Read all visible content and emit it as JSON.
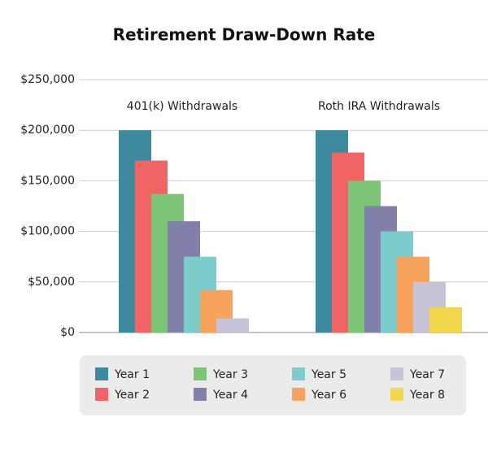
{
  "chart_data": {
    "type": "bar",
    "title": "Retirement Draw-Down Rate",
    "categories": [
      "401(k) Withdrawals",
      "Roth IRA Withdrawals"
    ],
    "series": [
      {
        "name": "Year 1",
        "color": "#3d8a9e",
        "values": [
          200000,
          200000
        ]
      },
      {
        "name": "Year 2",
        "color": "#f06465",
        "values": [
          170000,
          178000
        ]
      },
      {
        "name": "Year 3",
        "color": "#7cc576",
        "values": [
          137000,
          150000
        ]
      },
      {
        "name": "Year 4",
        "color": "#8180aa",
        "values": [
          110000,
          125000
        ]
      },
      {
        "name": "Year 5",
        "color": "#7ccccc",
        "values": [
          75000,
          100000
        ]
      },
      {
        "name": "Year 6",
        "color": "#f7a35c",
        "values": [
          42000,
          75000
        ]
      },
      {
        "name": "Year 7",
        "color": "#c5c3d8",
        "values": [
          14000,
          50000
        ]
      },
      {
        "name": "Year 8",
        "color": "#f2d64b",
        "values": [
          null,
          25000
        ]
      }
    ],
    "ylim": [
      0,
      250000
    ],
    "yticks": [
      {
        "value": 0,
        "label": "$0"
      },
      {
        "value": 50000,
        "label": "$50,000"
      },
      {
        "value": 100000,
        "label": "$100,000"
      },
      {
        "value": 150000,
        "label": "$150,000"
      },
      {
        "value": 200000,
        "label": "$200,000"
      },
      {
        "value": 250000,
        "label": "$250,000"
      }
    ],
    "grid": true
  }
}
